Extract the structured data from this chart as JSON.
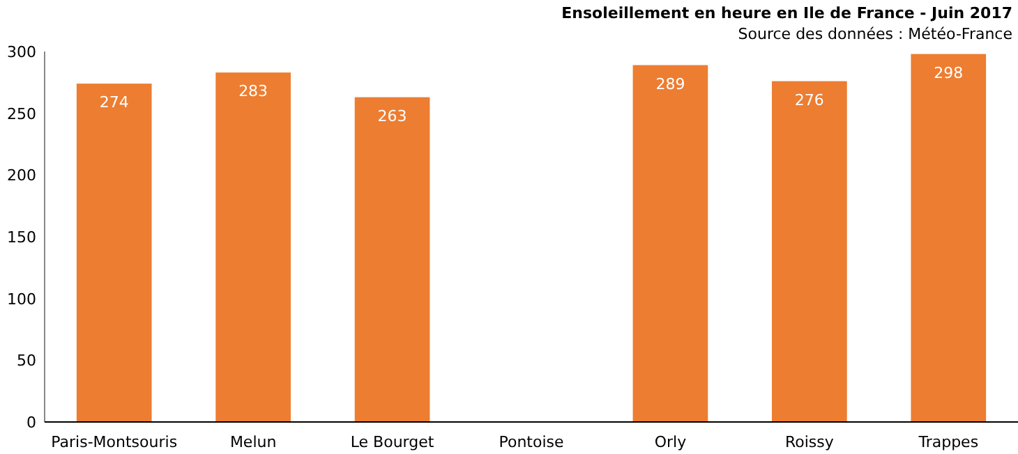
{
  "chart_data": {
    "type": "bar",
    "title": "Ensoleillement en heure en Ile de France - Juin 2017",
    "annotations": [
      "Source des données : Météo-France"
    ],
    "categories": [
      "Paris-Montsouris",
      "Melun",
      "Le Bourget",
      "Pontoise",
      "Orly",
      "Roissy",
      "Trappes"
    ],
    "values": [
      274,
      283,
      263,
      null,
      289,
      276,
      298
    ],
    "color": "#ed7d31",
    "ylim": [
      0,
      300
    ],
    "yticks": [
      0,
      50,
      100,
      150,
      200,
      250,
      300
    ],
    "grid": false,
    "data_labels": true
  }
}
